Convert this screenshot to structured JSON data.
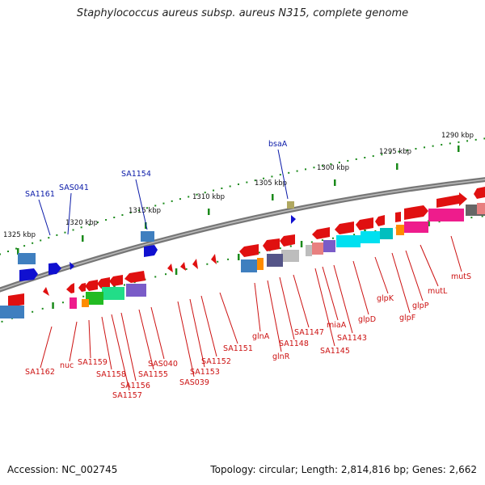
{
  "title": "Staphylococcus aureus subsp. aureus N315, complete genome",
  "footer": {
    "accession": "Accession: NC_002745",
    "topology": "Topology: circular; Length: 2,814,816 bp; Genes: 2,662"
  },
  "colors": {
    "backbone": "#808080",
    "forward_label": "#0a1aa8",
    "reverse_label": "#cc1111",
    "tick_major": "#1a8a1a"
  },
  "scale_ticks": [
    {
      "label": "1290 kbp"
    },
    {
      "label": "1295 kbp"
    },
    {
      "label": "1300 kbp"
    },
    {
      "label": "1305 kbp"
    },
    {
      "label": "1310 kbp"
    },
    {
      "label": "1315 kbp"
    },
    {
      "label": "1320 kbp"
    },
    {
      "label": "1325 kbp"
    }
  ],
  "forward_genes": [
    {
      "name": "bsaA",
      "strand": "+"
    },
    {
      "name": "SA1154",
      "strand": "+"
    },
    {
      "name": "SAS041",
      "strand": "+"
    },
    {
      "name": "SA1161",
      "strand": "+"
    }
  ],
  "reverse_genes": [
    {
      "name": "SA1162",
      "strand": "-"
    },
    {
      "name": "nuc",
      "strand": "-"
    },
    {
      "name": "SA1159",
      "strand": "-"
    },
    {
      "name": "SA1158",
      "strand": "-"
    },
    {
      "name": "SA1157",
      "strand": "-"
    },
    {
      "name": "SA1156",
      "strand": "-"
    },
    {
      "name": "SA1155",
      "strand": "-"
    },
    {
      "name": "SAS040",
      "strand": "-"
    },
    {
      "name": "SAS039",
      "strand": "-"
    },
    {
      "name": "SA1153",
      "strand": "-"
    },
    {
      "name": "SA1152",
      "strand": "-"
    },
    {
      "name": "SA1151",
      "strand": "-"
    },
    {
      "name": "glnA",
      "strand": "-"
    },
    {
      "name": "glnR",
      "strand": "-"
    },
    {
      "name": "SA1148",
      "strand": "-"
    },
    {
      "name": "SA1147",
      "strand": "-"
    },
    {
      "name": "SA1145",
      "strand": "-"
    },
    {
      "name": "miaA",
      "strand": "-"
    },
    {
      "name": "SA1143",
      "strand": "-"
    },
    {
      "name": "glpD",
      "strand": "-"
    },
    {
      "name": "glpK",
      "strand": "-"
    },
    {
      "name": "glpF",
      "strand": "-"
    },
    {
      "name": "glpP",
      "strand": "-"
    },
    {
      "name": "mutL",
      "strand": "-"
    },
    {
      "name": "mutS",
      "strand": "-"
    }
  ]
}
